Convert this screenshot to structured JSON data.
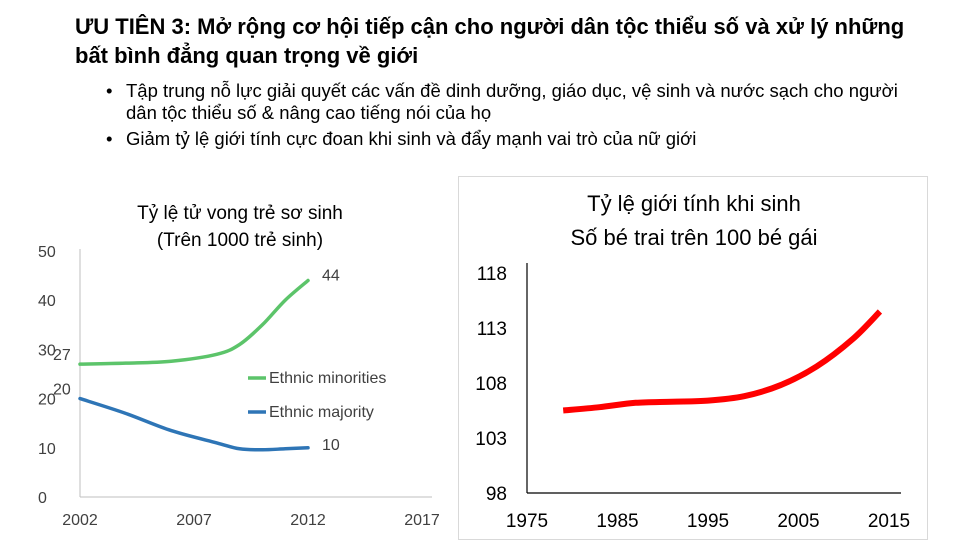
{
  "slide": {
    "title": "ƯU TIÊN 3: Mở rộng cơ hội tiếp cận cho người dân tộc thiểu số và xử lý những bất bình đẳng quan trọng về giới",
    "bullets": [
      "Tập trung nỗ lực giải quyết các vấn đề dinh dưỡng, giáo dục, vệ sinh và nước sạch cho người dân tộc thiểu số & nâng cao tiếng nói của họ",
      "Giảm tỷ lệ giới tính cực đoan khi sinh và đẩy mạnh vai trò của nữ giới"
    ]
  },
  "chart_data": [
    {
      "type": "line",
      "title": "Tỷ lệ tử vong trẻ sơ sinh",
      "subtitle": "(Trên 1000 trẻ sinh)",
      "xlim": [
        2002,
        2017
      ],
      "ylim": [
        0,
        50
      ],
      "x_ticks": [
        2002,
        2007,
        2012,
        2017
      ],
      "y_ticks": [
        0,
        10,
        20,
        30,
        40,
        50
      ],
      "legend_position": "right",
      "grid": false,
      "series": [
        {
          "name": "Ethnic minorities",
          "color": "#5cc46a",
          "x": [
            2002,
            2004,
            2006,
            2008,
            2009,
            2010,
            2011,
            2012
          ],
          "y": [
            27,
            27.2,
            27.6,
            29,
            31,
            35,
            40,
            44
          ],
          "start_label": "27",
          "end_label": "44"
        },
        {
          "name": "Ethnic majority",
          "color": "#2e75b6",
          "x": [
            2002,
            2004,
            2006,
            2008,
            2009,
            2010,
            2011,
            2012
          ],
          "y": [
            20,
            17,
            13.5,
            11,
            9.8,
            9.6,
            9.8,
            10
          ],
          "start_label": "20",
          "end_label": "10"
        }
      ]
    },
    {
      "type": "line",
      "title": "Tỷ lệ giới tính khi sinh",
      "subtitle": "Số bé trai trên 100 bé gái",
      "xlim": [
        1975,
        2015
      ],
      "ylim": [
        98,
        118
      ],
      "x_ticks": [
        1975,
        1985,
        1995,
        2005,
        2015
      ],
      "y_ticks": [
        98,
        103,
        108,
        113,
        118
      ],
      "grid": false,
      "series": [
        {
          "name": "",
          "color": "#ff0000",
          "x": [
            1979,
            1983,
            1987,
            1991,
            1995,
            1999,
            2003,
            2007,
            2011,
            2014
          ],
          "y": [
            105.5,
            105.8,
            106.2,
            106.3,
            106.4,
            106.8,
            107.8,
            109.5,
            112,
            114.5
          ]
        }
      ]
    }
  ]
}
